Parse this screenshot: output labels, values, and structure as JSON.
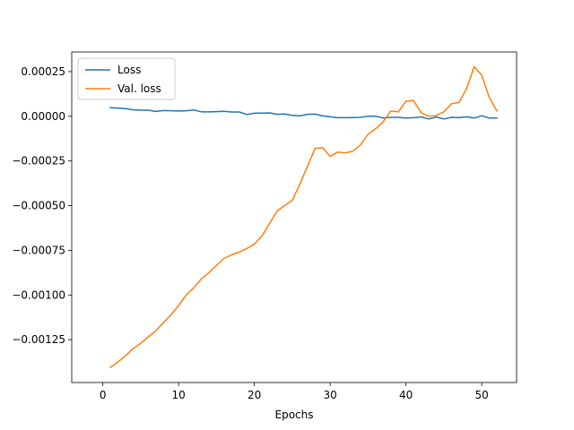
{
  "chart_data": {
    "type": "line",
    "title": "",
    "xlabel": "Epochs",
    "ylabel": "",
    "xlim": [
      -4.1,
      54.6
    ],
    "ylim": [
      -0.00149,
      0.00036
    ],
    "xticks": [
      0,
      10,
      20,
      30,
      40,
      50
    ],
    "xtick_labels": [
      "0",
      "10",
      "20",
      "30",
      "40",
      "50"
    ],
    "yticks": [
      -0.00125,
      -0.001,
      -0.00075,
      -0.0005,
      -0.00025,
      0,
      0.00025
    ],
    "ytick_labels": [
      "−0.00125",
      "−0.00100",
      "−0.00075",
      "−0.00050",
      "−0.00025",
      "0.00000",
      "0.00025"
    ],
    "grid": false,
    "legend_position": "upper-left",
    "x": [
      1,
      2,
      3,
      4,
      5,
      6,
      7,
      8,
      9,
      10,
      11,
      12,
      13,
      14,
      15,
      16,
      17,
      18,
      19,
      20,
      21,
      22,
      23,
      24,
      25,
      26,
      27,
      28,
      29,
      30,
      31,
      32,
      33,
      34,
      35,
      36,
      37,
      38,
      39,
      40,
      41,
      42,
      43,
      44,
      45,
      46,
      47,
      48,
      49,
      50,
      51,
      52
    ],
    "series": [
      {
        "name": "Loss",
        "color": "#1f77b4",
        "values": [
          4.8e-05,
          4.6e-05,
          4.3e-05,
          3.6e-05,
          3.4e-05,
          3.4e-05,
          2.7e-05,
          3.2e-05,
          3.1e-05,
          3e-05,
          3.1e-05,
          3.5e-05,
          2.5e-05,
          2.5e-05,
          2.6e-05,
          2.8e-05,
          2.4e-05,
          2.4e-05,
          1e-05,
          1.7e-05,
          1.8e-05,
          1.9e-05,
          1.1e-05,
          1.3e-05,
          5e-06,
          2e-06,
          1.1e-05,
          1.2e-05,
          3e-06,
          -3e-06,
          -8e-06,
          -8e-06,
          -7e-06,
          -6e-06,
          0.0,
          1e-06,
          -1e-05,
          -6e-06,
          -6e-06,
          -1e-05,
          -8e-06,
          -4e-06,
          -1.5e-05,
          -4e-06,
          -1.5e-05,
          -6e-06,
          -7e-06,
          -3e-06,
          -1e-05,
          3e-06,
          -1e-05,
          -9e-06
        ]
      },
      {
        "name": "Val. loss",
        "color": "#ff7f0e",
        "values": [
          -0.001405,
          -0.001375,
          -0.00134,
          -0.0013,
          -0.00127,
          -0.001235,
          -0.0012,
          -0.001155,
          -0.00111,
          -0.00106,
          -0.001,
          -0.00096,
          -0.00091,
          -0.000875,
          -0.000835,
          -0.000795,
          -0.000775,
          -0.00076,
          -0.00074,
          -0.000715,
          -0.00067,
          -0.0006,
          -0.00053,
          -0.0005,
          -0.00047,
          -0.00038,
          -0.00028,
          -0.00018,
          -0.000175,
          -0.000225,
          -0.0002,
          -0.000205,
          -0.000195,
          -0.00016,
          -0.0001,
          -7e-05,
          -3e-05,
          3e-05,
          2.5e-05,
          8.5e-05,
          8.8e-05,
          2e-05,
          0.0,
          5e-06,
          2.5e-05,
          7e-05,
          7.8e-05,
          0.000155,
          0.000278,
          0.00023,
          0.000105,
          3e-05
        ]
      }
    ]
  }
}
